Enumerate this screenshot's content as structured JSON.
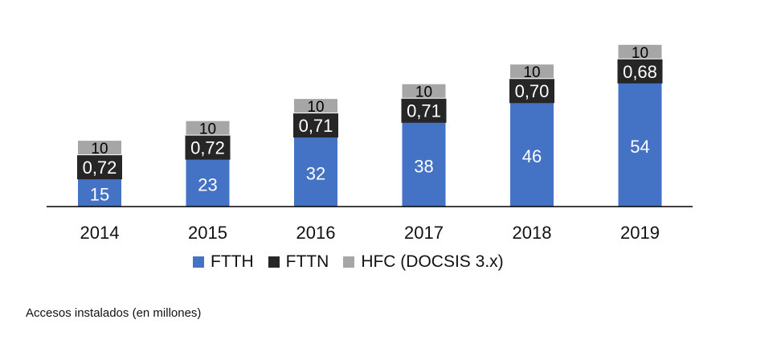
{
  "chart_data": {
    "type": "bar",
    "stacked": true,
    "categories": [
      "2014",
      "2015",
      "2016",
      "2017",
      "2018",
      "2019"
    ],
    "series": [
      {
        "name": "FTTH",
        "color": "#4472c4",
        "values": [
          15,
          23,
          32,
          38,
          46,
          54
        ],
        "labels": [
          "15",
          "23",
          "32",
          "38",
          "46",
          "54"
        ]
      },
      {
        "name": "FTTN",
        "color": "#262626",
        "values": [
          0.72,
          0.72,
          0.71,
          0.71,
          0.7,
          0.68
        ],
        "labels": [
          "0,72",
          "0,72",
          "0,71",
          "0,71",
          "0,70",
          "0,68"
        ]
      },
      {
        "name": "HFC (DOCSIS 3.x)",
        "color": "#a6a6a6",
        "values": [
          10,
          10,
          10,
          10,
          10,
          10
        ],
        "labels": [
          "10",
          "10",
          "10",
          "10",
          "10",
          "10"
        ]
      }
    ],
    "legend_position": "bottom",
    "grid": false
  },
  "footnote": "Accesos instalados (en millones)"
}
